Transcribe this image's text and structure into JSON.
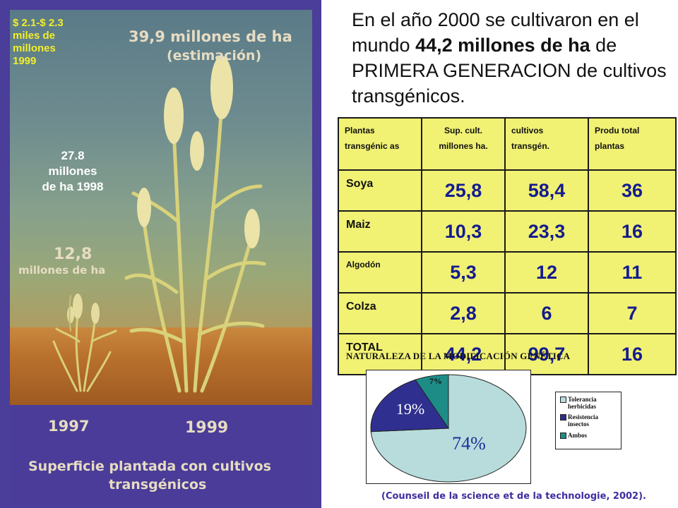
{
  "poster": {
    "price_note": "$ 2.1-$ 2.3\nmiles de\nmillones\n1999",
    "top_label": "39,9 millones de ha",
    "top_label_2": "(estimación)",
    "mid_label": "27.8\nmillones\nde ha 1998",
    "left_label_1": "12,8",
    "left_label_2": "millones de ha",
    "year_left": "1997",
    "year_right": "1999",
    "caption_1": "Superficie plantada con cultivos",
    "caption_2": "transgénicos"
  },
  "headline": {
    "part1": "En el año 2000 se cultivaron en el mundo ",
    "bold": "44,2 millones de ha",
    "part2": " de PRIMERA GENERACION de cultivos transgénicos."
  },
  "table": {
    "headers": [
      "Plantas transgénic as",
      "Sup. cult. millones ha.",
      "cultivos transgén.",
      "Produ total plantas"
    ],
    "rows": [
      {
        "name": "Soya",
        "sup": "25,8",
        "cult": "58,4",
        "prod": "36"
      },
      {
        "name": "Maiz",
        "sup": "10,3",
        "cult": "23,3",
        "prod": "16"
      },
      {
        "name": "Algodón",
        "sup": "5,3",
        "cult": "12",
        "prod": "11"
      },
      {
        "name": "Colza",
        "sup": "2,8",
        "cult": "6",
        "prod": "7"
      },
      {
        "name": "TOTAL",
        "sup": "44,2",
        "cult": "99,7",
        "prod": "16"
      }
    ]
  },
  "chart_data": {
    "type": "pie",
    "title": "NATURALEZA DE LA MODIFICACIÓN GENÉTICA",
    "slices": [
      {
        "label": "Tolerancia herbicidas",
        "value": 74,
        "display": "74%",
        "color": "#b8dcdc"
      },
      {
        "label": "Resistencia insectos",
        "value": 19,
        "display": "19%",
        "color": "#2e2f8e"
      },
      {
        "label": "Ambos",
        "value": 7,
        "display": "7%",
        "color": "#1d8c86"
      }
    ],
    "legend_placement": "right"
  },
  "source": "(Counseil de la science et de la technologie, 2002)."
}
